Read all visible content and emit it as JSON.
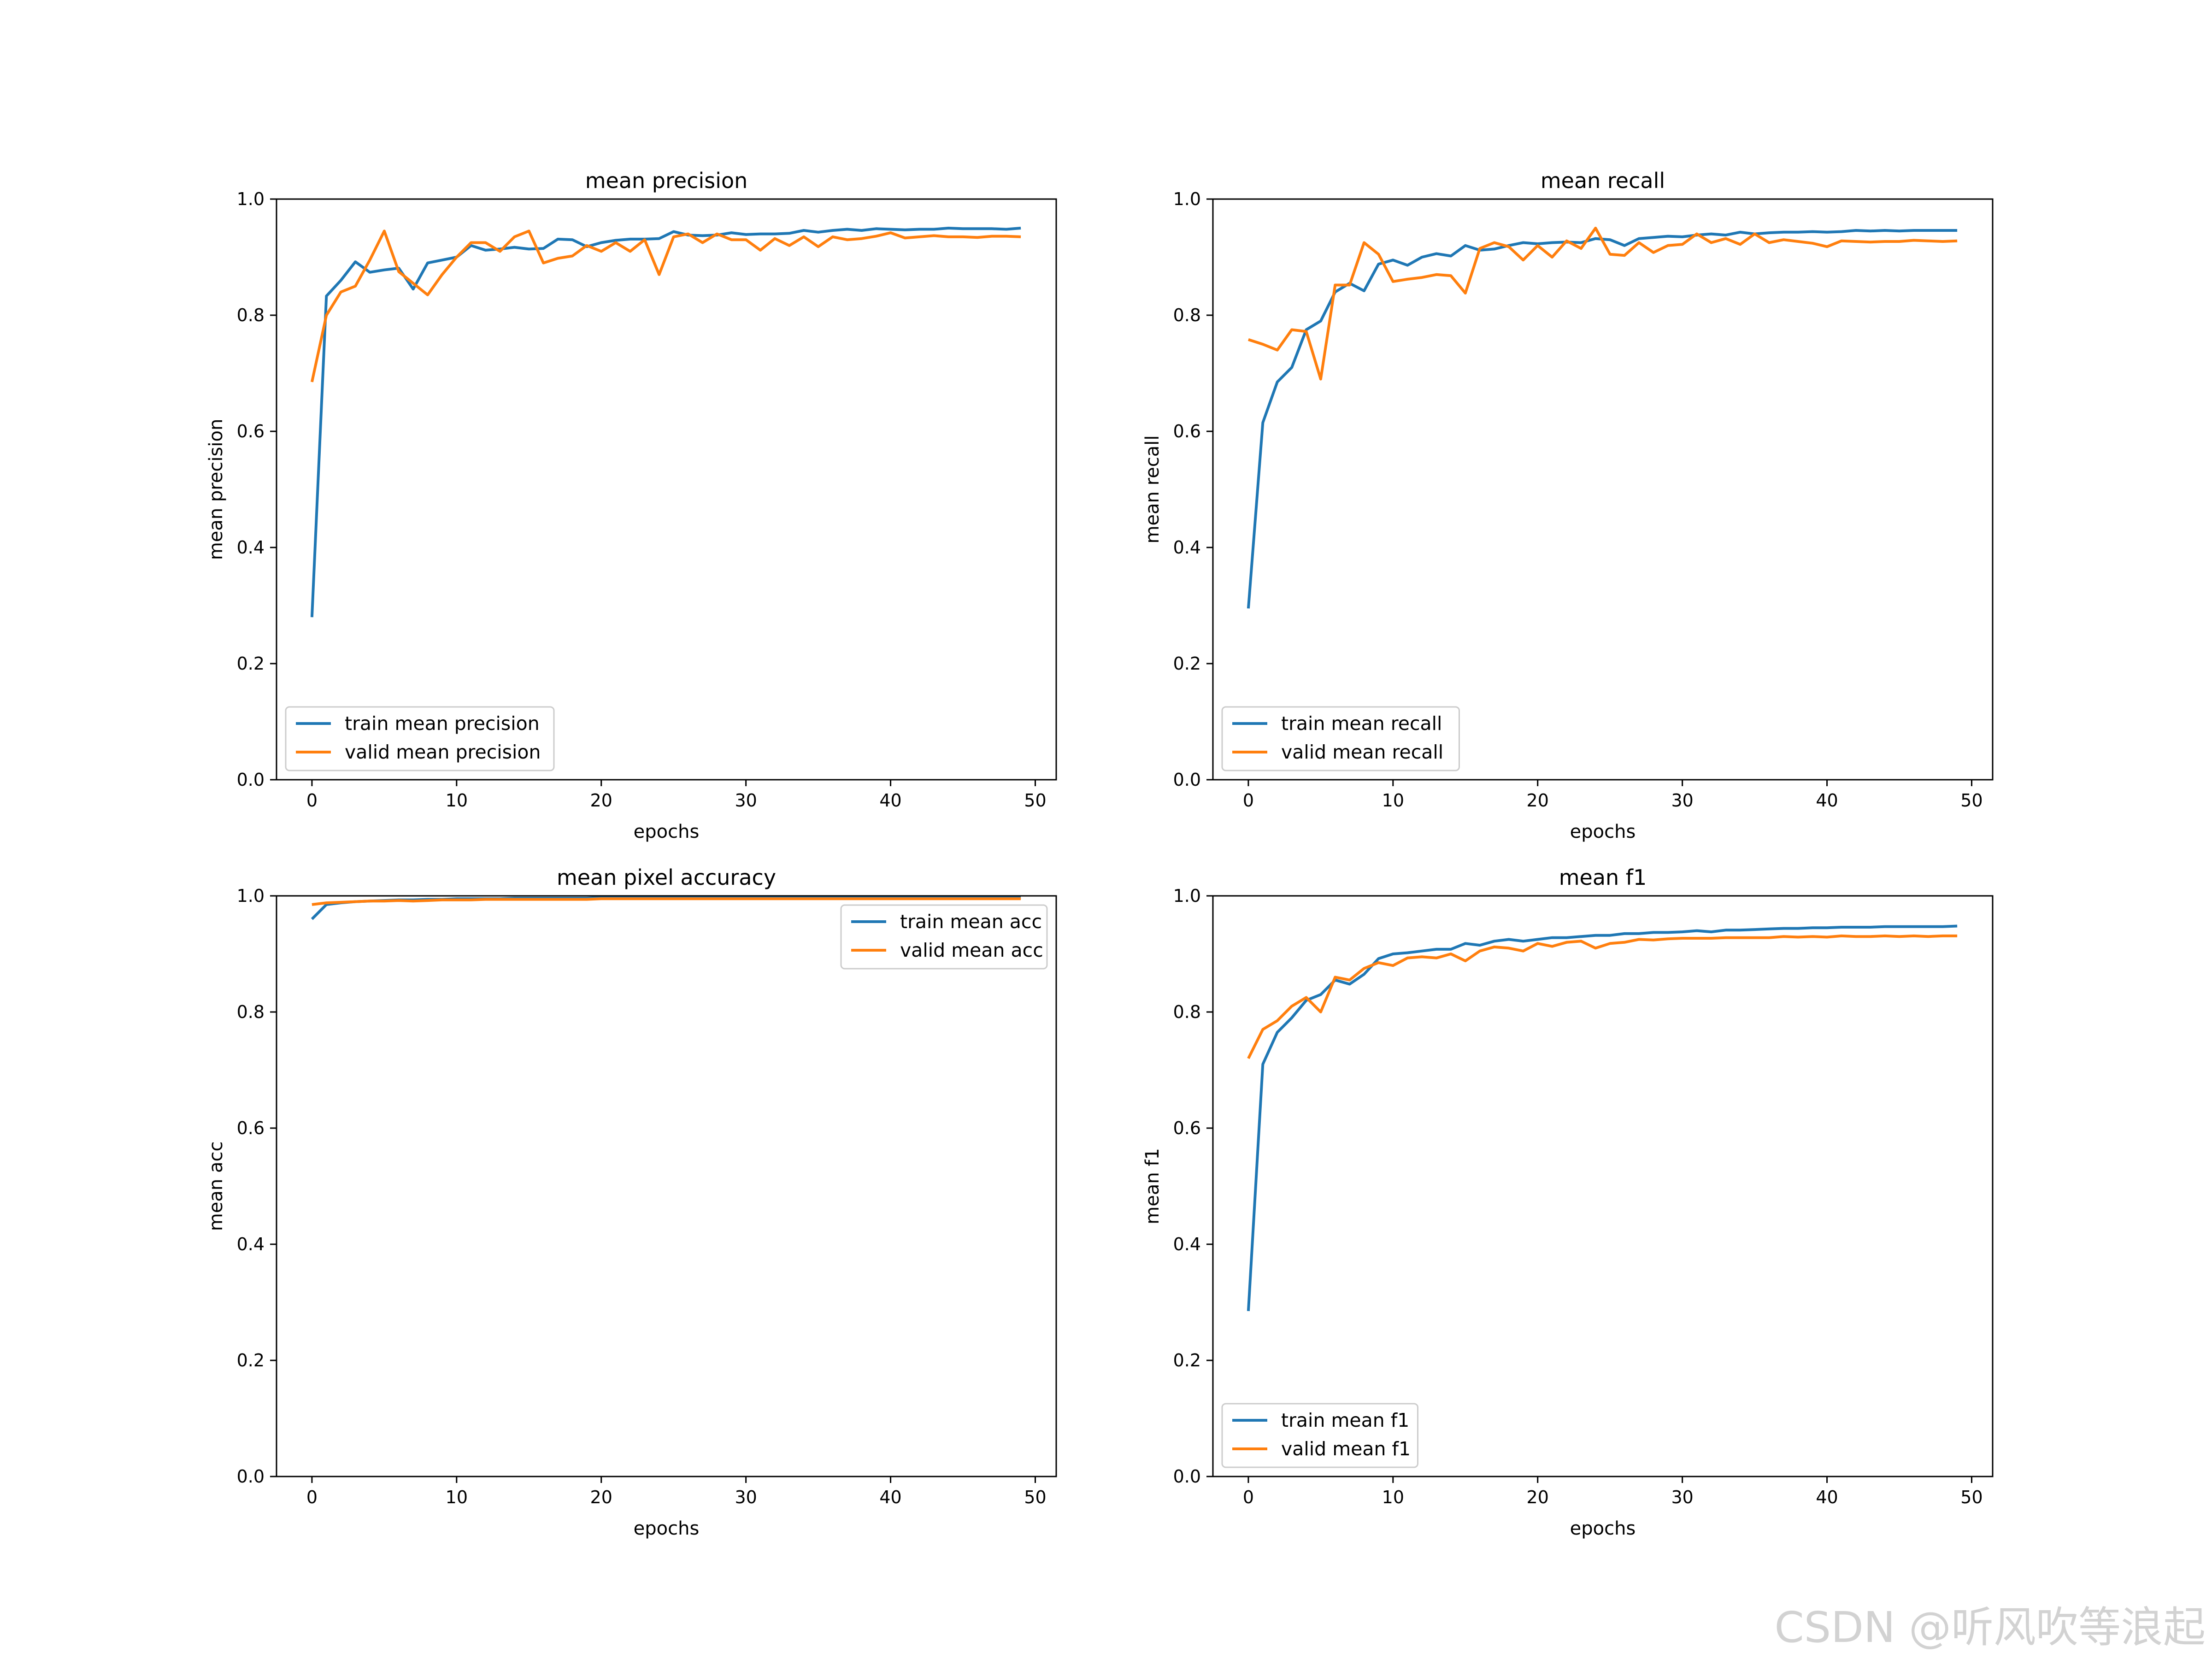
{
  "colors": {
    "train": "#1f77b4",
    "valid": "#ff7f0e"
  },
  "watermark": "CSDN @听风吹等浪起",
  "chart_data": [
    {
      "type": "line",
      "title": "mean precision",
      "xlabel": "epochs",
      "ylabel": "mean precision",
      "xlim": [
        -2.45,
        51.45
      ],
      "ylim": [
        0,
        1.0
      ],
      "xticks": [
        0,
        10,
        20,
        30,
        40,
        50
      ],
      "yticks": [
        0.0,
        0.2,
        0.4,
        0.6,
        0.8,
        1.0
      ],
      "legend_position": "lower-left",
      "grid": false,
      "series": [
        {
          "name": "train mean precision",
          "color": "#1f77b4",
          "values": [
            0.28,
            0.833,
            0.86,
            0.892,
            0.874,
            0.878,
            0.881,
            0.845,
            0.89,
            0.895,
            0.9,
            0.92,
            0.912,
            0.914,
            0.917,
            0.914,
            0.915,
            0.931,
            0.93,
            0.918,
            0.925,
            0.929,
            0.931,
            0.931,
            0.932,
            0.944,
            0.938,
            0.937,
            0.938,
            0.942,
            0.939,
            0.94,
            0.94,
            0.941,
            0.946,
            0.943,
            0.946,
            0.948,
            0.946,
            0.949,
            0.948,
            0.947,
            0.948,
            0.948,
            0.95,
            0.949,
            0.949,
            0.949,
            0.948,
            0.95
          ]
        },
        {
          "name": "valid mean precision",
          "color": "#ff7f0e",
          "values": [
            0.685,
            0.8,
            0.84,
            0.85,
            0.895,
            0.945,
            0.875,
            0.855,
            0.835,
            0.87,
            0.9,
            0.925,
            0.925,
            0.91,
            0.935,
            0.945,
            0.89,
            0.898,
            0.902,
            0.92,
            0.91,
            0.925,
            0.91,
            0.93,
            0.87,
            0.935,
            0.94,
            0.925,
            0.94,
            0.93,
            0.93,
            0.912,
            0.932,
            0.92,
            0.935,
            0.918,
            0.935,
            0.93,
            0.932,
            0.936,
            0.942,
            0.933,
            0.935,
            0.937,
            0.935,
            0.935,
            0.934,
            0.936,
            0.936,
            0.935
          ]
        }
      ]
    },
    {
      "type": "line",
      "title": "mean recall",
      "xlabel": "epochs",
      "ylabel": "mean recall",
      "xlim": [
        -2.45,
        51.45
      ],
      "ylim": [
        0,
        1.0
      ],
      "xticks": [
        0,
        10,
        20,
        30,
        40,
        50
      ],
      "yticks": [
        0.0,
        0.2,
        0.4,
        0.6,
        0.8,
        1.0
      ],
      "legend_position": "lower-left",
      "grid": false,
      "series": [
        {
          "name": "train mean recall",
          "color": "#1f77b4",
          "values": [
            0.295,
            0.615,
            0.685,
            0.71,
            0.775,
            0.79,
            0.84,
            0.855,
            0.842,
            0.888,
            0.895,
            0.886,
            0.9,
            0.906,
            0.902,
            0.92,
            0.912,
            0.914,
            0.92,
            0.925,
            0.923,
            0.925,
            0.926,
            0.925,
            0.932,
            0.93,
            0.92,
            0.932,
            0.934,
            0.936,
            0.935,
            0.938,
            0.94,
            0.938,
            0.943,
            0.94,
            0.942,
            0.943,
            0.943,
            0.944,
            0.943,
            0.944,
            0.946,
            0.945,
            0.946,
            0.945,
            0.946,
            0.946,
            0.946,
            0.946
          ]
        },
        {
          "name": "valid mean recall",
          "color": "#ff7f0e",
          "values": [
            0.758,
            0.75,
            0.74,
            0.775,
            0.772,
            0.69,
            0.852,
            0.852,
            0.925,
            0.905,
            0.858,
            0.862,
            0.865,
            0.87,
            0.868,
            0.838,
            0.915,
            0.925,
            0.918,
            0.895,
            0.92,
            0.9,
            0.928,
            0.915,
            0.95,
            0.905,
            0.903,
            0.925,
            0.908,
            0.92,
            0.922,
            0.94,
            0.925,
            0.932,
            0.922,
            0.94,
            0.925,
            0.93,
            0.927,
            0.924,
            0.918,
            0.928,
            0.927,
            0.926,
            0.927,
            0.927,
            0.929,
            0.928,
            0.927,
            0.928
          ]
        }
      ]
    },
    {
      "type": "line",
      "title": "mean pixel accuracy",
      "xlabel": "epochs",
      "ylabel": "mean acc",
      "xlim": [
        -2.45,
        51.45
      ],
      "ylim": [
        0,
        1.0
      ],
      "xticks": [
        0,
        10,
        20,
        30,
        40,
        50
      ],
      "yticks": [
        0.0,
        0.2,
        0.4,
        0.6,
        0.8,
        1.0
      ],
      "legend_position": "top-right",
      "grid": false,
      "series": [
        {
          "name": "train mean acc",
          "color": "#1f77b4",
          "values": [
            0.96,
            0.985,
            0.988,
            0.99,
            0.991,
            0.992,
            0.993,
            0.993,
            0.994,
            0.994,
            0.995,
            0.995,
            0.995,
            0.995,
            0.996,
            0.996,
            0.996,
            0.996,
            0.996,
            0.996,
            0.997,
            0.997,
            0.997,
            0.997,
            0.997,
            0.997,
            0.997,
            0.997,
            0.997,
            0.997,
            0.997,
            0.997,
            0.997,
            0.997,
            0.997,
            0.997,
            0.997,
            0.997,
            0.997,
            0.997,
            0.997,
            0.997,
            0.997,
            0.997,
            0.997,
            0.997,
            0.997,
            0.997,
            0.997,
            0.997
          ]
        },
        {
          "name": "valid mean acc",
          "color": "#ff7f0e",
          "values": [
            0.985,
            0.988,
            0.989,
            0.99,
            0.991,
            0.991,
            0.992,
            0.991,
            0.992,
            0.993,
            0.993,
            0.993,
            0.994,
            0.994,
            0.994,
            0.994,
            0.994,
            0.994,
            0.994,
            0.994,
            0.995,
            0.995,
            0.995,
            0.995,
            0.995,
            0.995,
            0.995,
            0.995,
            0.995,
            0.995,
            0.995,
            0.995,
            0.995,
            0.995,
            0.995,
            0.995,
            0.995,
            0.995,
            0.995,
            0.995,
            0.995,
            0.995,
            0.995,
            0.995,
            0.995,
            0.995,
            0.995,
            0.995,
            0.995,
            0.995
          ]
        }
      ]
    },
    {
      "type": "line",
      "title": "mean f1",
      "xlabel": "epochs",
      "ylabel": "mean f1",
      "xlim": [
        -2.45,
        51.45
      ],
      "ylim": [
        0,
        1.0
      ],
      "xticks": [
        0,
        10,
        20,
        30,
        40,
        50
      ],
      "yticks": [
        0.0,
        0.2,
        0.4,
        0.6,
        0.8,
        1.0
      ],
      "legend_position": "lower-left",
      "grid": false,
      "series": [
        {
          "name": "train mean f1",
          "color": "#1f77b4",
          "values": [
            0.285,
            0.71,
            0.765,
            0.79,
            0.82,
            0.83,
            0.855,
            0.848,
            0.865,
            0.892,
            0.9,
            0.902,
            0.905,
            0.908,
            0.908,
            0.918,
            0.915,
            0.922,
            0.925,
            0.922,
            0.925,
            0.928,
            0.928,
            0.93,
            0.932,
            0.932,
            0.935,
            0.935,
            0.937,
            0.937,
            0.938,
            0.94,
            0.938,
            0.941,
            0.941,
            0.942,
            0.943,
            0.944,
            0.944,
            0.945,
            0.945,
            0.946,
            0.946,
            0.946,
            0.947,
            0.947,
            0.947,
            0.947,
            0.947,
            0.948
          ]
        },
        {
          "name": "valid mean f1",
          "color": "#ff7f0e",
          "values": [
            0.72,
            0.77,
            0.785,
            0.81,
            0.825,
            0.8,
            0.86,
            0.855,
            0.875,
            0.885,
            0.88,
            0.893,
            0.895,
            0.893,
            0.9,
            0.888,
            0.905,
            0.912,
            0.91,
            0.905,
            0.918,
            0.913,
            0.92,
            0.922,
            0.91,
            0.918,
            0.92,
            0.925,
            0.924,
            0.926,
            0.927,
            0.927,
            0.927,
            0.928,
            0.928,
            0.928,
            0.928,
            0.93,
            0.929,
            0.93,
            0.929,
            0.931,
            0.93,
            0.93,
            0.931,
            0.93,
            0.931,
            0.93,
            0.931,
            0.931
          ]
        }
      ]
    }
  ]
}
